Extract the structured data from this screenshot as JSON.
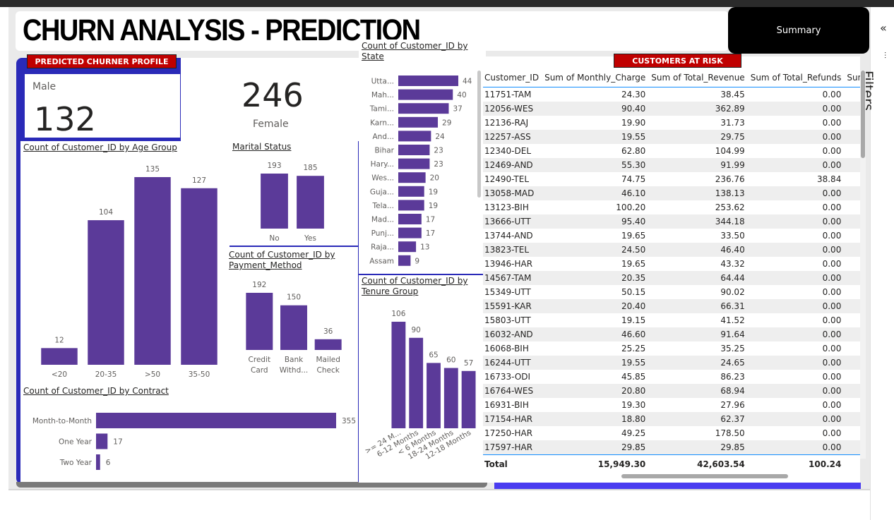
{
  "report": {
    "title": "CHURN ANALYSIS - PREDICTION",
    "summary_button": "Summary",
    "filters_label": "Filters"
  },
  "profile": {
    "tab_label": "PREDICTED CHURNER PROFILE",
    "male_label": "Male",
    "male_value": "132",
    "female_label": "Female",
    "female_value": "246"
  },
  "risk_table": {
    "tab_label": "CUSTOMERS AT RISK",
    "columns": [
      "Customer_ID",
      "Sum of Monthly_Charge",
      "Sum of Total_Revenue",
      "Sum of Total_Refunds",
      "Sum of"
    ],
    "rows": [
      [
        "11751-TAM",
        "24.30",
        "38.45",
        "0.00"
      ],
      [
        "12056-WES",
        "90.40",
        "362.89",
        "0.00"
      ],
      [
        "12136-RAJ",
        "19.90",
        "31.73",
        "0.00"
      ],
      [
        "12257-ASS",
        "19.55",
        "29.75",
        "0.00"
      ],
      [
        "12340-DEL",
        "62.80",
        "104.99",
        "0.00"
      ],
      [
        "12469-AND",
        "55.30",
        "91.99",
        "0.00"
      ],
      [
        "12490-TEL",
        "74.75",
        "236.76",
        "38.84"
      ],
      [
        "13058-MAD",
        "46.10",
        "138.13",
        "0.00"
      ],
      [
        "13123-BIH",
        "100.20",
        "253.62",
        "0.00"
      ],
      [
        "13666-UTT",
        "95.40",
        "344.18",
        "0.00"
      ],
      [
        "13744-AND",
        "19.65",
        "33.50",
        "0.00"
      ],
      [
        "13823-TEL",
        "24.50",
        "46.40",
        "0.00"
      ],
      [
        "13946-HAR",
        "19.65",
        "43.32",
        "0.00"
      ],
      [
        "14567-TAM",
        "20.35",
        "64.44",
        "0.00"
      ],
      [
        "15349-UTT",
        "50.15",
        "90.02",
        "0.00"
      ],
      [
        "15591-KAR",
        "20.40",
        "66.31",
        "0.00"
      ],
      [
        "15803-UTT",
        "19.15",
        "41.52",
        "0.00"
      ],
      [
        "16032-AND",
        "46.60",
        "91.64",
        "0.00"
      ],
      [
        "16068-BIH",
        "25.25",
        "35.25",
        "0.00"
      ],
      [
        "16244-UTT",
        "19.55",
        "24.65",
        "0.00"
      ],
      [
        "16733-ODI",
        "45.85",
        "86.23",
        "0.00"
      ],
      [
        "16764-WES",
        "20.80",
        "68.94",
        "0.00"
      ],
      [
        "16931-BIH",
        "19.30",
        "27.96",
        "0.00"
      ],
      [
        "17154-HAR",
        "18.80",
        "62.37",
        "0.00"
      ],
      [
        "17250-HAR",
        "49.25",
        "178.50",
        "0.00"
      ],
      [
        "17597-HAR",
        "29.85",
        "29.85",
        "0.00"
      ]
    ],
    "total": [
      "Total",
      "15,949.30",
      "42,603.54",
      "100.24"
    ]
  },
  "chart_data": [
    {
      "id": "age",
      "type": "bar",
      "title": "Count of Customer_ID by Age Group",
      "categories": [
        "<20",
        "20-35",
        ">50",
        "35-50"
      ],
      "values": [
        12,
        104,
        135,
        127
      ],
      "color": "#5b3a99"
    },
    {
      "id": "marital",
      "type": "bar",
      "title": "Marital Status",
      "categories": [
        "No",
        "Yes"
      ],
      "values": [
        193,
        185
      ],
      "color": "#5b3a99"
    },
    {
      "id": "payment",
      "type": "bar",
      "title": "Count of Customer_ID by Payment_Method",
      "categories": [
        [
          "Credit",
          "Card"
        ],
        [
          "Bank",
          "Withd..."
        ],
        [
          "Mailed",
          "Check"
        ]
      ],
      "values": [
        192,
        150,
        36
      ],
      "color": "#5b3a99"
    },
    {
      "id": "contract",
      "type": "bar",
      "orientation": "horizontal",
      "title": "Count of Customer_ID by Contract",
      "categories": [
        "Month-to-Month",
        "One Year",
        "Two Year"
      ],
      "values": [
        355,
        17,
        6
      ],
      "color": "#5b3a99"
    },
    {
      "id": "state",
      "type": "bar",
      "orientation": "horizontal",
      "title": "Count of Customer_ID by State",
      "categories": [
        "Utta...",
        "Mah...",
        "Tami...",
        "Karn...",
        "And...",
        "Bihar",
        "Hary...",
        "Wes...",
        "Guja...",
        "Tela...",
        "Mad...",
        "Punj...",
        "Raja...",
        "Assam"
      ],
      "values": [
        44,
        40,
        37,
        29,
        24,
        23,
        23,
        20,
        19,
        19,
        17,
        17,
        13,
        9
      ],
      "color": "#5b3a99"
    },
    {
      "id": "tenure",
      "type": "bar",
      "title": "Count of Customer_ID by Tenure Group",
      "categories": [
        ">= 24 M...",
        "6-12 Months",
        "< 6 Months",
        "18-24 Months",
        "12-18 Months"
      ],
      "values": [
        106,
        90,
        65,
        60,
        57
      ],
      "color": "#5b3a99"
    }
  ]
}
